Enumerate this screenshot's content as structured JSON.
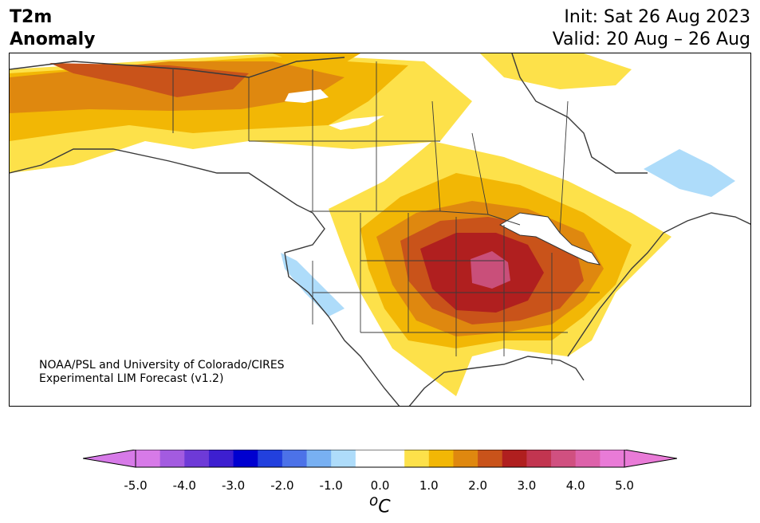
{
  "header": {
    "title_line1": "T2m",
    "title_line2": "Anomaly",
    "init": "Init: Sat 26 Aug 2023",
    "valid": "Valid: 20 Aug – 26 Aug"
  },
  "credit": {
    "line1": "NOAA/PSL and University of Colorado/CIRES",
    "line2": "Experimental LIM Forecast (v1.2)"
  },
  "colorbar": {
    "unit_base": "C",
    "unit_sup": "o",
    "colors": [
      "#d77ae8",
      "#a35be0",
      "#6e3ad7",
      "#3d1fd0",
      "#0000d0",
      "#2240de",
      "#4c72e8",
      "#78b0f2",
      "#aedcfa",
      "#ffffff",
      "#ffffff",
      "#fde14a",
      "#f2b705",
      "#df880f",
      "#c9531a",
      "#b01f1f",
      "#c23550",
      "#d05080",
      "#dd62aa",
      "#e97bd7"
    ],
    "min_color": "#d77ae8",
    "max_color": "#e97bd7",
    "ticks": [
      "-5.0",
      "-4.0",
      "-3.0",
      "-2.0",
      "-1.0",
      "0.0",
      "1.0",
      "2.0",
      "3.0",
      "4.0",
      "5.0"
    ]
  },
  "map_colors": {
    "c1": "#fde14a",
    "c2": "#f2b705",
    "c3": "#df880f",
    "c4": "#c9531a",
    "c5": "#b01f1f",
    "c6": "#c94f7a",
    "cool": "#aedcfa"
  }
}
